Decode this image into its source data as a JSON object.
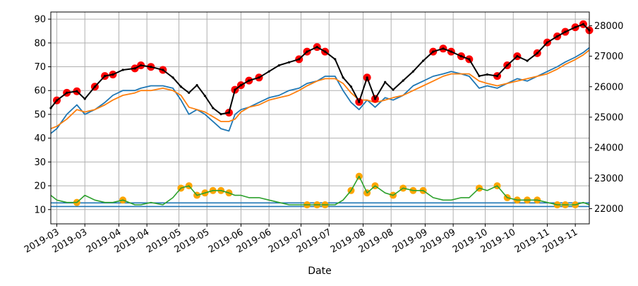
{
  "chart_data": {
    "type": "line",
    "title": "",
    "xlabel": "Date",
    "ylabel": "",
    "ylabel_right": "",
    "grid": true,
    "x_ticks": [
      "2019-03",
      "2019-03",
      "2019-04",
      "2019-04",
      "2019-05",
      "2019-05",
      "2019-06",
      "2019-06",
      "2019-07",
      "2019-07",
      "2019-08",
      "2019-08",
      "2019-09",
      "2019-09",
      "2019-10",
      "2019-10",
      "2019-11",
      "2019-11"
    ],
    "x_tick_dates": [
      "2019-03-01",
      "2019-03-15",
      "2019-04-01",
      "2019-04-15",
      "2019-05-01",
      "2019-05-15",
      "2019-06-01",
      "2019-06-15",
      "2019-07-01",
      "2019-07-15",
      "2019-08-01",
      "2019-08-15",
      "2019-09-01",
      "2019-09-15",
      "2019-10-01",
      "2019-10-15",
      "2019-11-01",
      "2019-11-15"
    ],
    "xlim": [
      "2019-02-26",
      "2019-11-22"
    ],
    "y_left": {
      "ticks": [
        10,
        20,
        30,
        40,
        50,
        60,
        70,
        80,
        90
      ],
      "ylim": [
        4,
        93
      ]
    },
    "y_right": {
      "ticks": [
        22000,
        23000,
        24000,
        25000,
        26000,
        27000,
        28000
      ],
      "ylim": [
        21500,
        28450
      ]
    },
    "colors": {
      "price": "#000000",
      "highlight": "#ff0000",
      "blue": "#1f77b4",
      "orange": "#ff7f0e",
      "green": "#2ca02c",
      "green_marker": "#ffa500",
      "hline": "#1f77b4"
    },
    "series": [
      {
        "key": "price",
        "axis": "right",
        "x": [
          "2019-02-26",
          "2019-03-01",
          "2019-03-06",
          "2019-03-11",
          "2019-03-15",
          "2019-03-20",
          "2019-03-25",
          "2019-03-29",
          "2019-04-03",
          "2019-04-09",
          "2019-04-12",
          "2019-04-17",
          "2019-04-23",
          "2019-04-28",
          "2019-05-02",
          "2019-05-06",
          "2019-05-10",
          "2019-05-14",
          "2019-05-18",
          "2019-05-22",
          "2019-05-26",
          "2019-05-29",
          "2019-06-01",
          "2019-06-05",
          "2019-06-10",
          "2019-06-15",
          "2019-06-20",
          "2019-06-25",
          "2019-06-30",
          "2019-07-04",
          "2019-07-09",
          "2019-07-13",
          "2019-07-18",
          "2019-07-22",
          "2019-07-26",
          "2019-07-30",
          "2019-08-03",
          "2019-08-07",
          "2019-08-12",
          "2019-08-16",
          "2019-08-21",
          "2019-08-26",
          "2019-08-31",
          "2019-09-05",
          "2019-09-10",
          "2019-09-14",
          "2019-09-19",
          "2019-09-23",
          "2019-09-28",
          "2019-10-02",
          "2019-10-07",
          "2019-10-12",
          "2019-10-17",
          "2019-10-22",
          "2019-10-27",
          "2019-11-01",
          "2019-11-06",
          "2019-11-10",
          "2019-11-15",
          "2019-11-19",
          "2019-11-22"
        ],
        "values": [
          25300,
          25550,
          25800,
          25850,
          25600,
          26000,
          26350,
          26400,
          26550,
          26600,
          26700,
          26650,
          26550,
          26300,
          26000,
          25800,
          26050,
          25700,
          25300,
          25100,
          25150,
          25900,
          26050,
          26200,
          26300,
          26500,
          26700,
          26800,
          26900,
          27150,
          27300,
          27150,
          26900,
          26300,
          26000,
          25500,
          26300,
          25600,
          26150,
          25900,
          26200,
          26500,
          26850,
          27150,
          27250,
          27150,
          27000,
          26900,
          26350,
          26400,
          26350,
          26700,
          27000,
          26850,
          27100,
          27450,
          27650,
          27800,
          27950,
          28050,
          27850
        ],
        "highlight": [
          [
            1,
            3
          ],
          [
            5,
            7
          ],
          [
            9,
            12
          ],
          [
            20,
            24
          ],
          [
            28,
            31
          ],
          [
            35,
            37
          ],
          [
            43,
            47
          ],
          [
            50,
            52
          ],
          [
            54,
            56
          ],
          [
            57,
            60
          ]
        ]
      },
      {
        "key": "blue",
        "axis": "left",
        "x": [
          "2019-02-26",
          "2019-03-01",
          "2019-03-06",
          "2019-03-11",
          "2019-03-15",
          "2019-03-20",
          "2019-03-25",
          "2019-03-29",
          "2019-04-03",
          "2019-04-09",
          "2019-04-12",
          "2019-04-17",
          "2019-04-23",
          "2019-04-28",
          "2019-05-02",
          "2019-05-06",
          "2019-05-10",
          "2019-05-14",
          "2019-05-18",
          "2019-05-22",
          "2019-05-26",
          "2019-05-29",
          "2019-06-01",
          "2019-06-05",
          "2019-06-10",
          "2019-06-15",
          "2019-06-20",
          "2019-06-25",
          "2019-06-30",
          "2019-07-04",
          "2019-07-09",
          "2019-07-13",
          "2019-07-18",
          "2019-07-22",
          "2019-07-26",
          "2019-07-30",
          "2019-08-03",
          "2019-08-07",
          "2019-08-12",
          "2019-08-16",
          "2019-08-21",
          "2019-08-26",
          "2019-08-31",
          "2019-09-05",
          "2019-09-10",
          "2019-09-14",
          "2019-09-19",
          "2019-09-23",
          "2019-09-28",
          "2019-10-02",
          "2019-10-07",
          "2019-10-12",
          "2019-10-17",
          "2019-10-22",
          "2019-10-27",
          "2019-11-01",
          "2019-11-06",
          "2019-11-10",
          "2019-11-15",
          "2019-11-19",
          "2019-11-22"
        ],
        "values": [
          42,
          44,
          50,
          54,
          50,
          52,
          55,
          58,
          60,
          60,
          61,
          62,
          62,
          61,
          56,
          50,
          52,
          50,
          47,
          44,
          43,
          50,
          52,
          53,
          55,
          57,
          58,
          60,
          61,
          63,
          64,
          66,
          66,
          60,
          55,
          52,
          56,
          53,
          57,
          56,
          58,
          62,
          64,
          66,
          67,
          68,
          67,
          66,
          61,
          62,
          61,
          63,
          65,
          64,
          66,
          68,
          70,
          72,
          74,
          76,
          78
        ]
      },
      {
        "key": "orange",
        "axis": "left",
        "x": [
          "2019-02-26",
          "2019-03-01",
          "2019-03-06",
          "2019-03-11",
          "2019-03-15",
          "2019-03-20",
          "2019-03-25",
          "2019-03-29",
          "2019-04-03",
          "2019-04-09",
          "2019-04-12",
          "2019-04-17",
          "2019-04-23",
          "2019-04-28",
          "2019-05-02",
          "2019-05-06",
          "2019-05-10",
          "2019-05-14",
          "2019-05-18",
          "2019-05-22",
          "2019-05-26",
          "2019-05-29",
          "2019-06-01",
          "2019-06-05",
          "2019-06-10",
          "2019-06-15",
          "2019-06-20",
          "2019-06-25",
          "2019-06-30",
          "2019-07-04",
          "2019-07-09",
          "2019-07-13",
          "2019-07-18",
          "2019-07-22",
          "2019-07-26",
          "2019-07-30",
          "2019-08-03",
          "2019-08-07",
          "2019-08-12",
          "2019-08-16",
          "2019-08-21",
          "2019-08-26",
          "2019-08-31",
          "2019-09-05",
          "2019-09-10",
          "2019-09-14",
          "2019-09-19",
          "2019-09-23",
          "2019-09-28",
          "2019-10-02",
          "2019-10-07",
          "2019-10-12",
          "2019-10-17",
          "2019-10-22",
          "2019-10-27",
          "2019-11-01",
          "2019-11-06",
          "2019-11-10",
          "2019-11-15",
          "2019-11-19",
          "2019-11-22"
        ],
        "values": [
          44,
          45,
          48,
          52,
          51,
          52,
          54,
          56,
          58,
          59,
          60,
          60,
          61,
          60,
          58,
          53,
          52,
          51,
          49,
          47,
          47,
          48,
          51,
          53,
          54,
          56,
          57,
          58,
          60,
          62,
          64,
          65,
          65,
          63,
          59,
          56,
          56,
          55,
          56,
          57,
          58,
          60,
          62,
          64,
          66,
          67,
          67,
          67,
          64,
          63,
          62,
          63,
          64,
          65,
          66,
          67,
          69,
          71,
          73,
          75,
          77
        ]
      },
      {
        "key": "green",
        "axis": "left",
        "x": [
          "2019-02-26",
          "2019-03-01",
          "2019-03-06",
          "2019-03-11",
          "2019-03-15",
          "2019-03-20",
          "2019-03-25",
          "2019-03-29",
          "2019-04-03",
          "2019-04-09",
          "2019-04-12",
          "2019-04-17",
          "2019-04-23",
          "2019-04-28",
          "2019-05-02",
          "2019-05-06",
          "2019-05-10",
          "2019-05-14",
          "2019-05-18",
          "2019-05-22",
          "2019-05-26",
          "2019-05-29",
          "2019-06-01",
          "2019-06-05",
          "2019-06-10",
          "2019-06-15",
          "2019-06-20",
          "2019-06-25",
          "2019-06-30",
          "2019-07-04",
          "2019-07-09",
          "2019-07-13",
          "2019-07-18",
          "2019-07-22",
          "2019-07-26",
          "2019-07-30",
          "2019-08-03",
          "2019-08-07",
          "2019-08-12",
          "2019-08-16",
          "2019-08-21",
          "2019-08-26",
          "2019-08-31",
          "2019-09-05",
          "2019-09-10",
          "2019-09-14",
          "2019-09-19",
          "2019-09-23",
          "2019-09-28",
          "2019-10-02",
          "2019-10-07",
          "2019-10-12",
          "2019-10-17",
          "2019-10-22",
          "2019-10-27",
          "2019-11-01",
          "2019-11-06",
          "2019-11-10",
          "2019-11-15",
          "2019-11-19",
          "2019-11-22"
        ],
        "values": [
          16,
          14,
          13,
          13,
          16,
          14,
          13,
          13,
          14,
          12,
          12,
          13,
          12,
          15,
          19,
          20,
          16,
          17,
          18,
          18,
          17,
          16,
          16,
          15,
          15,
          14,
          13,
          12,
          12,
          12,
          12,
          12,
          12,
          14,
          18,
          24,
          17,
          20,
          17,
          16,
          19,
          18,
          18,
          15,
          14,
          14,
          15,
          15,
          19,
          18,
          20,
          15,
          14,
          14,
          14,
          13,
          12,
          12,
          12,
          13,
          12
        ],
        "highlight": [
          [
            3,
            3
          ],
          [
            8,
            8
          ],
          [
            14,
            20
          ],
          [
            29,
            31
          ],
          [
            34,
            37
          ],
          [
            39,
            42
          ],
          [
            48,
            48
          ],
          [
            50,
            54
          ],
          [
            56,
            58
          ]
        ]
      }
    ],
    "hlines": [
      {
        "axis": "left",
        "y": 11.3,
        "color": "#1f77b4"
      },
      {
        "axis": "left",
        "y": 12.8,
        "color": "#1f77b4"
      }
    ]
  }
}
